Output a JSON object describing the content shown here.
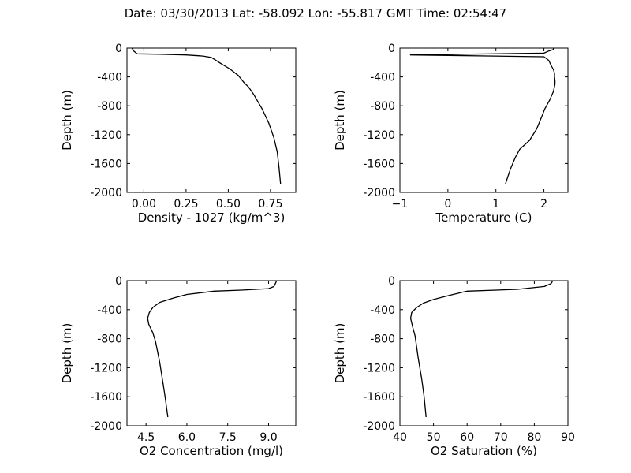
{
  "figure_title": "Date: 03/30/2013  Lat:  -58.092 Lon:  -55.817  GMT Time: 02:54:47",
  "chart_data": [
    {
      "type": "line",
      "xlabel": "Density - 1027 (kg/m^3)",
      "ylabel": "Depth (m)",
      "xlim": [
        -0.1,
        0.9
      ],
      "ylim": [
        -2000,
        0
      ],
      "xticks": [
        "0.00",
        "0.25",
        "0.50",
        "0.75"
      ],
      "xtick_values": [
        0,
        0.25,
        0.5,
        0.75
      ],
      "yticks": [
        "0",
        "-400",
        "-800",
        "-1200",
        "-1600",
        "-2000"
      ],
      "ytick_values": [
        0,
        -400,
        -800,
        -1200,
        -1600,
        -2000
      ],
      "grid": false,
      "series": [
        {
          "x": [
            -0.07,
            -0.06,
            -0.04,
            0.1,
            0.25,
            0.35,
            0.4,
            0.42,
            0.46,
            0.51,
            0.56,
            0.59,
            0.62,
            0.65,
            0.7,
            0.74,
            0.77,
            0.79,
            0.8,
            0.81
          ],
          "y": [
            0,
            -40,
            -80,
            -85,
            -95,
            -110,
            -130,
            -160,
            -220,
            -290,
            -380,
            -470,
            -540,
            -640,
            -840,
            -1040,
            -1240,
            -1440,
            -1640,
            -1880
          ]
        }
      ]
    },
    {
      "type": "line",
      "xlabel": "Temperature (C)",
      "ylabel": "Depth (m)",
      "xlim": [
        -1,
        2.5
      ],
      "ylim": [
        -2000,
        0
      ],
      "xticks": [
        "−1",
        "0",
        "1",
        "2"
      ],
      "xtick_values": [
        -1,
        0,
        1,
        2
      ],
      "yticks": [
        "0",
        "-400",
        "-800",
        "-1200",
        "-1600",
        "-2000"
      ],
      "ytick_values": [
        0,
        -400,
        -800,
        -1200,
        -1600,
        -2000
      ],
      "grid": false,
      "series": [
        {
          "x": [
            2.2,
            2.2,
            2.1,
            2.0,
            -0.78,
            2.0,
            2.1,
            2.15,
            2.2,
            2.22,
            2.22,
            2.23,
            2.23,
            2.2,
            2.12,
            2.02,
            1.95,
            1.85,
            1.7,
            1.5,
            1.4,
            1.3,
            1.2
          ],
          "y": [
            0,
            -20,
            -40,
            -70,
            -95,
            -120,
            -170,
            -240,
            -300,
            -350,
            -400,
            -450,
            -500,
            -600,
            -720,
            -840,
            -960,
            -1120,
            -1280,
            -1400,
            -1520,
            -1680,
            -1880
          ]
        }
      ]
    },
    {
      "type": "line",
      "xlabel": "O2 Concentration (mg/l)",
      "ylabel": "Depth (m)",
      "xlim": [
        3.8,
        10.0
      ],
      "ylim": [
        -2000,
        0
      ],
      "xticks": [
        "4.5",
        "6.0",
        "7.5",
        "9.0"
      ],
      "xtick_values": [
        4.5,
        6.0,
        7.5,
        9.0
      ],
      "yticks": [
        "0",
        "-400",
        "-800",
        "-1200",
        "-1600",
        "-2000"
      ],
      "ytick_values": [
        0,
        -400,
        -800,
        -1200,
        -1600,
        -2000
      ],
      "grid": false,
      "series": [
        {
          "x": [
            9.3,
            9.25,
            9.2,
            9.0,
            8.0,
            7.0,
            6.0,
            5.5,
            5.0,
            4.75,
            4.62,
            4.56,
            4.6,
            4.75,
            4.85,
            5.0,
            5.1,
            5.2,
            5.3
          ],
          "y": [
            0,
            -40,
            -80,
            -110,
            -130,
            -145,
            -190,
            -240,
            -300,
            -370,
            -440,
            -520,
            -600,
            -720,
            -840,
            -1120,
            -1360,
            -1600,
            -1880
          ]
        }
      ]
    },
    {
      "type": "line",
      "xlabel": "O2 Saturation (%)",
      "ylabel": "Depth (m)",
      "xlim": [
        40,
        90
      ],
      "ylim": [
        -2000,
        0
      ],
      "xticks": [
        "40",
        "50",
        "60",
        "70",
        "80",
        "90"
      ],
      "xtick_values": [
        40,
        50,
        60,
        70,
        80,
        90
      ],
      "yticks": [
        "0",
        "-400",
        "-800",
        "-1200",
        "-1600",
        "-2000"
      ],
      "ytick_values": [
        0,
        -400,
        -800,
        -1200,
        -1600,
        -2000
      ],
      "grid": false,
      "series": [
        {
          "x": [
            85.5,
            85.0,
            83.0,
            75.0,
            60.0,
            55.0,
            50.0,
            47.0,
            45.0,
            43.5,
            43.2,
            43.8,
            44.5,
            45.5,
            46.5,
            47.2,
            47.8
          ],
          "y": [
            0,
            -40,
            -80,
            -120,
            -145,
            -200,
            -260,
            -310,
            -370,
            -440,
            -520,
            -640,
            -760,
            -1080,
            -1360,
            -1600,
            -1880
          ]
        }
      ]
    }
  ]
}
